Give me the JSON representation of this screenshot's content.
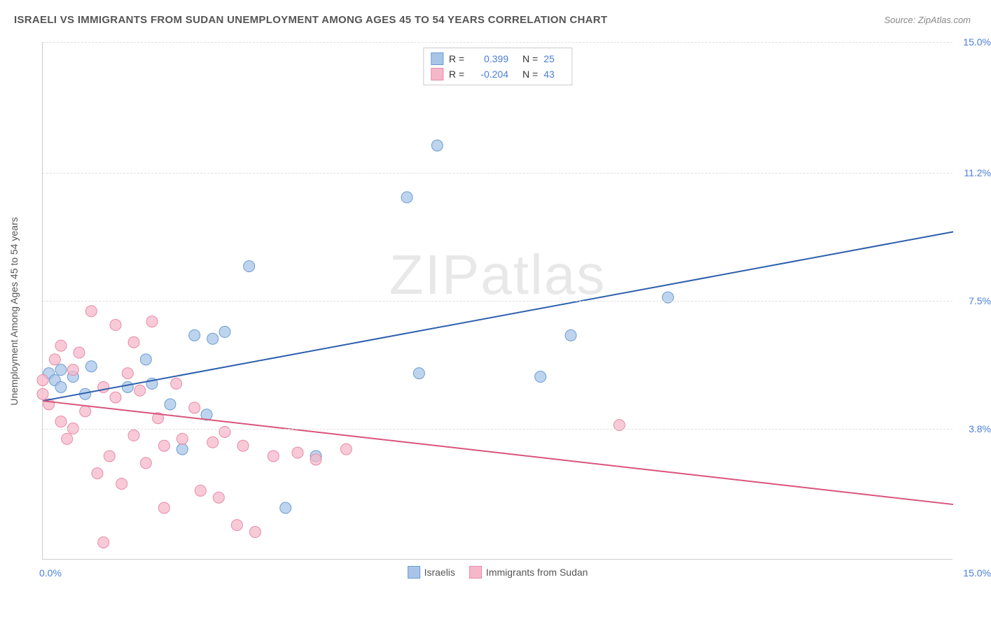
{
  "title": "ISRAELI VS IMMIGRANTS FROM SUDAN UNEMPLOYMENT AMONG AGES 45 TO 54 YEARS CORRELATION CHART",
  "source": "Source: ZipAtlas.com",
  "y_label": "Unemployment Among Ages 45 to 54 years",
  "watermark_bold": "ZIP",
  "watermark_light": "atlas",
  "chart": {
    "type": "scatter-with-trendlines",
    "xlim": [
      0,
      15
    ],
    "ylim": [
      0,
      15
    ],
    "x_tick_left": "0.0%",
    "x_tick_right": "15.0%",
    "y_ticks": [
      {
        "value": 3.8,
        "label": "3.8%"
      },
      {
        "value": 7.5,
        "label": "7.5%"
      },
      {
        "value": 11.2,
        "label": "11.2%"
      },
      {
        "value": 15.0,
        "label": "15.0%"
      }
    ],
    "grid_color": "#e0e0e0",
    "axis_color": "#cccccc",
    "background_color": "#ffffff",
    "series": [
      {
        "name": "Israelis",
        "color_fill": "#a8c5e8",
        "color_stroke": "#6a9bd1",
        "line_color": "#2d5fad",
        "marker_radius": 8,
        "marker_opacity": 0.75,
        "R": "0.399",
        "N": "25",
        "trendline": {
          "x1": 0,
          "y1": 4.6,
          "x2": 15,
          "y2": 9.5
        },
        "points": [
          [
            0.1,
            5.4
          ],
          [
            0.2,
            5.2
          ],
          [
            0.3,
            5.0
          ],
          [
            0.3,
            5.5
          ],
          [
            0.5,
            5.3
          ],
          [
            0.7,
            4.8
          ],
          [
            0.8,
            5.6
          ],
          [
            1.4,
            5.0
          ],
          [
            1.7,
            5.8
          ],
          [
            1.8,
            5.1
          ],
          [
            2.1,
            4.5
          ],
          [
            2.3,
            3.2
          ],
          [
            2.5,
            6.5
          ],
          [
            2.7,
            4.2
          ],
          [
            2.8,
            6.4
          ],
          [
            3.0,
            6.6
          ],
          [
            3.4,
            8.5
          ],
          [
            4.0,
            1.5
          ],
          [
            4.5,
            3.0
          ],
          [
            6.0,
            10.5
          ],
          [
            6.2,
            5.4
          ],
          [
            6.5,
            12.0
          ],
          [
            8.2,
            5.3
          ],
          [
            8.7,
            6.5
          ],
          [
            10.3,
            7.6
          ]
        ]
      },
      {
        "name": "Immigrants from Sudan",
        "color_fill": "#f5b8c9",
        "color_stroke": "#e88aa8",
        "line_color": "#d9547a",
        "marker_radius": 8,
        "marker_opacity": 0.75,
        "R": "-0.204",
        "N": "43",
        "trendline": {
          "x1": 0,
          "y1": 4.6,
          "x2": 15,
          "y2": 1.6
        },
        "points": [
          [
            0.0,
            4.8
          ],
          [
            0.0,
            5.2
          ],
          [
            0.1,
            4.5
          ],
          [
            0.2,
            5.8
          ],
          [
            0.3,
            4.0
          ],
          [
            0.3,
            6.2
          ],
          [
            0.4,
            3.5
          ],
          [
            0.5,
            5.5
          ],
          [
            0.5,
            3.8
          ],
          [
            0.6,
            6.0
          ],
          [
            0.7,
            4.3
          ],
          [
            0.8,
            7.2
          ],
          [
            0.9,
            2.5
          ],
          [
            1.0,
            5.0
          ],
          [
            1.0,
            0.5
          ],
          [
            1.1,
            3.0
          ],
          [
            1.2,
            4.7
          ],
          [
            1.2,
            6.8
          ],
          [
            1.3,
            2.2
          ],
          [
            1.4,
            5.4
          ],
          [
            1.5,
            6.3
          ],
          [
            1.5,
            3.6
          ],
          [
            1.6,
            4.9
          ],
          [
            1.7,
            2.8
          ],
          [
            1.8,
            6.9
          ],
          [
            1.9,
            4.1
          ],
          [
            2.0,
            3.3
          ],
          [
            2.0,
            1.5
          ],
          [
            2.2,
            5.1
          ],
          [
            2.3,
            3.5
          ],
          [
            2.5,
            4.4
          ],
          [
            2.6,
            2.0
          ],
          [
            2.8,
            3.4
          ],
          [
            2.9,
            1.8
          ],
          [
            3.0,
            3.7
          ],
          [
            3.2,
            1.0
          ],
          [
            3.3,
            3.3
          ],
          [
            3.5,
            0.8
          ],
          [
            3.8,
            3.0
          ],
          [
            4.2,
            3.1
          ],
          [
            4.5,
            2.9
          ],
          [
            5.0,
            3.2
          ],
          [
            9.5,
            3.9
          ]
        ]
      }
    ],
    "legend_bottom": [
      {
        "label": "Israelis",
        "fill": "#a8c5e8",
        "stroke": "#6a9bd1"
      },
      {
        "label": "Immigrants from Sudan",
        "fill": "#f5b8c9",
        "stroke": "#e88aa8"
      }
    ]
  }
}
